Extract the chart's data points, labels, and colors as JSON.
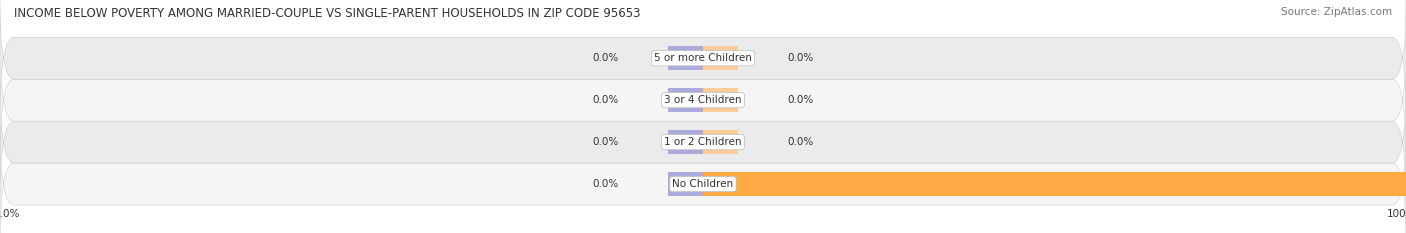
{
  "title": "INCOME BELOW POVERTY AMONG MARRIED-COUPLE VS SINGLE-PARENT HOUSEHOLDS IN ZIP CODE 95653",
  "source": "Source: ZipAtlas.com",
  "categories": [
    "No Children",
    "1 or 2 Children",
    "3 or 4 Children",
    "5 or more Children"
  ],
  "married_values": [
    0.0,
    0.0,
    0.0,
    0.0
  ],
  "single_values": [
    100.0,
    0.0,
    0.0,
    0.0
  ],
  "married_color": "#aaaadd",
  "single_color_full": "#ffaa44",
  "single_color_zero": "#ffcc99",
  "bar_height": 0.58,
  "xlim": 100,
  "title_fontsize": 8.5,
  "source_fontsize": 7.5,
  "label_fontsize": 7.5,
  "category_fontsize": 7.5,
  "legend_fontsize": 7.5,
  "axis_label_fontsize": 7.5,
  "background_color": "#ffffff",
  "row_color_light": "#f5f5f5",
  "row_color_dark": "#ebebeb",
  "title_color": "#333333",
  "source_color": "#777777",
  "min_bar_width": 8
}
